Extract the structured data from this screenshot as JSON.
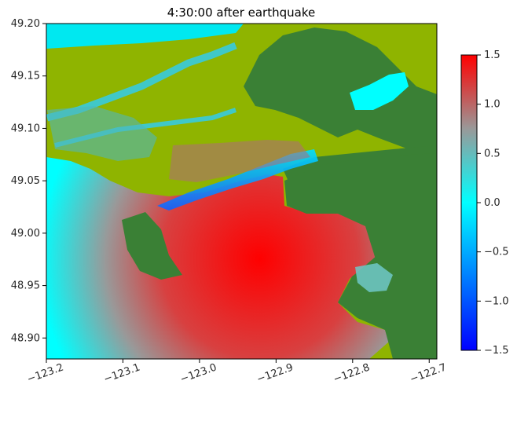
{
  "chart_data": {
    "type": "heatmap",
    "title": "4:30:00 after earthquake",
    "xlabel": "",
    "ylabel": "",
    "xlim": [
      -123.2,
      -122.69
    ],
    "ylim": [
      48.88,
      49.2
    ],
    "x_ticks": [
      {
        "value": -123.2,
        "label": "−123.2"
      },
      {
        "value": -123.1,
        "label": "−123.1"
      },
      {
        "value": -123.0,
        "label": "−123.0"
      },
      {
        "value": -122.9,
        "label": "−122.9"
      },
      {
        "value": -122.8,
        "label": "−122.8"
      },
      {
        "value": -122.7,
        "label": "−122.7"
      }
    ],
    "y_ticks": [
      {
        "value": 49.2,
        "label": "49.20"
      },
      {
        "value": 49.15,
        "label": "49.15"
      },
      {
        "value": 49.1,
        "label": "49.10"
      },
      {
        "value": 49.05,
        "label": "49.05"
      },
      {
        "value": 49.0,
        "label": "49.00"
      },
      {
        "value": 48.95,
        "label": "48.95"
      },
      {
        "value": 48.9,
        "label": "48.90"
      }
    ],
    "colorbar": {
      "range": [
        -1.5,
        1.5
      ],
      "stops": [
        {
          "value": -1.5,
          "color": "#0000ff"
        },
        {
          "value": 0.0,
          "color": "#00ffff"
        },
        {
          "value": 0.75,
          "color": "#999999"
        },
        {
          "value": 1.5,
          "color": "#ff0000"
        }
      ],
      "ticks": [
        {
          "value": 1.5,
          "label": "1.5"
        },
        {
          "value": 1.0,
          "label": "1.0"
        },
        {
          "value": 0.5,
          "label": "0.5"
        },
        {
          "value": 0.0,
          "label": "0.0"
        },
        {
          "value": -0.5,
          "label": "−0.5"
        },
        {
          "value": -1.0,
          "label": "−1.0"
        },
        {
          "value": -1.5,
          "label": "−1.5"
        }
      ]
    },
    "colors": {
      "land_lowland": "#8fb400",
      "land_upland": "#3a8035",
      "water_zero": "#00ffff",
      "surge_max": "#ff0000",
      "surge_mid": "#999999",
      "drawdown": "#0000ff"
    }
  }
}
